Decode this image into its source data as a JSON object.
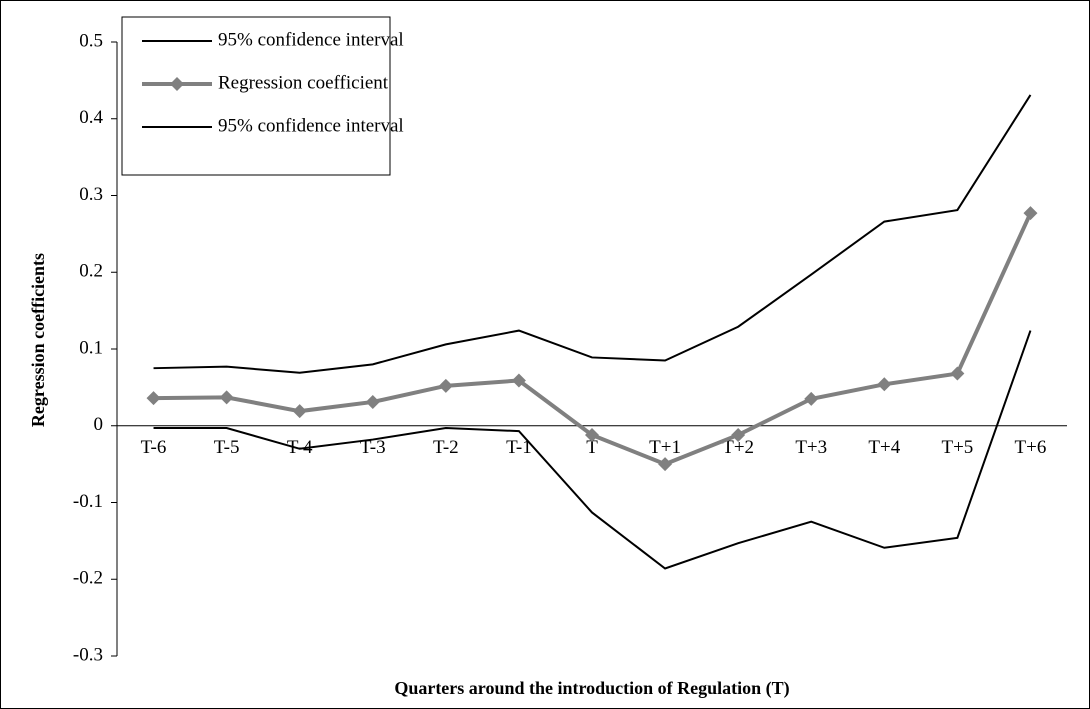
{
  "chart_data": {
    "type": "line",
    "x_label": "Quarters around the introduction of Regulation (T)",
    "y_label": "Regression coefficients",
    "categories": [
      "T-6",
      "T-5",
      "T-4",
      "T-3",
      "T-2",
      "T-1",
      "T",
      "T+1",
      "T+2",
      "T+3",
      "T+4",
      "T+5",
      "T+6"
    ],
    "ylim": [
      -0.3,
      0.5
    ],
    "yticks": [
      -0.3,
      -0.2,
      -0.1,
      0,
      0.1,
      0.2,
      0.3,
      0.4,
      0.5
    ],
    "legend": "upper left",
    "series": [
      {
        "name": "95% confidence interval",
        "color": "#000000",
        "marker": "none",
        "values": [
          0.075,
          0.077,
          0.069,
          0.08,
          0.106,
          0.124,
          0.089,
          0.085,
          0.129,
          0.197,
          0.266,
          0.281,
          0.431
        ]
      },
      {
        "name": "Regression coefficient",
        "color": "#808080",
        "marker": "diamond",
        "values": [
          0.036,
          0.037,
          0.019,
          0.031,
          0.052,
          0.059,
          -0.012,
          -0.05,
          -0.012,
          0.035,
          0.054,
          0.068,
          0.277
        ]
      },
      {
        "name": "95% confidence interval",
        "color": "#000000",
        "marker": "none",
        "values": [
          -0.003,
          -0.003,
          -0.03,
          -0.018,
          -0.003,
          -0.007,
          -0.113,
          -0.186,
          -0.153,
          -0.125,
          -0.159,
          -0.146,
          0.124
        ]
      }
    ]
  }
}
